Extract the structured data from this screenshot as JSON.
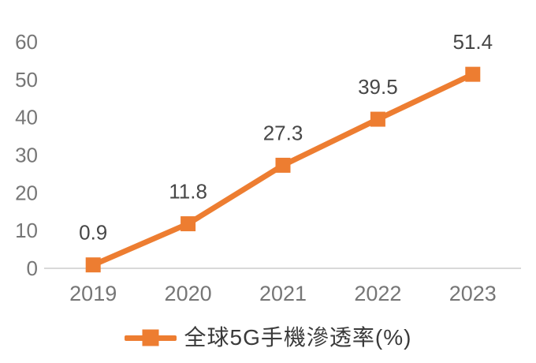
{
  "chart_data": {
    "type": "line",
    "categories": [
      "2019",
      "2020",
      "2021",
      "2022",
      "2023"
    ],
    "series": [
      {
        "name": "全球5G手機滲透率(%)",
        "values": [
          0.9,
          11.8,
          27.3,
          39.5,
          51.4
        ],
        "data_labels": [
          "0.9",
          "11.8",
          "27.3",
          "39.5",
          "51.4"
        ]
      }
    ],
    "title": "",
    "xlabel": "",
    "ylabel": "",
    "ylim": [
      0,
      60
    ],
    "yticks": [
      0,
      10,
      20,
      30,
      40,
      50,
      60
    ],
    "grid": false,
    "legend_position": "bottom",
    "marker": "square",
    "show_data_labels": true
  },
  "colors": {
    "series_orange": "#ED7D31",
    "axis_line": "#D9D9D9",
    "tick_label": "#767676",
    "data_label": "#474747",
    "legend_text": "#3A3A3A",
    "background": "#FFFFFF"
  },
  "legend": {
    "label": "全球5G手機滲透率(%)"
  }
}
